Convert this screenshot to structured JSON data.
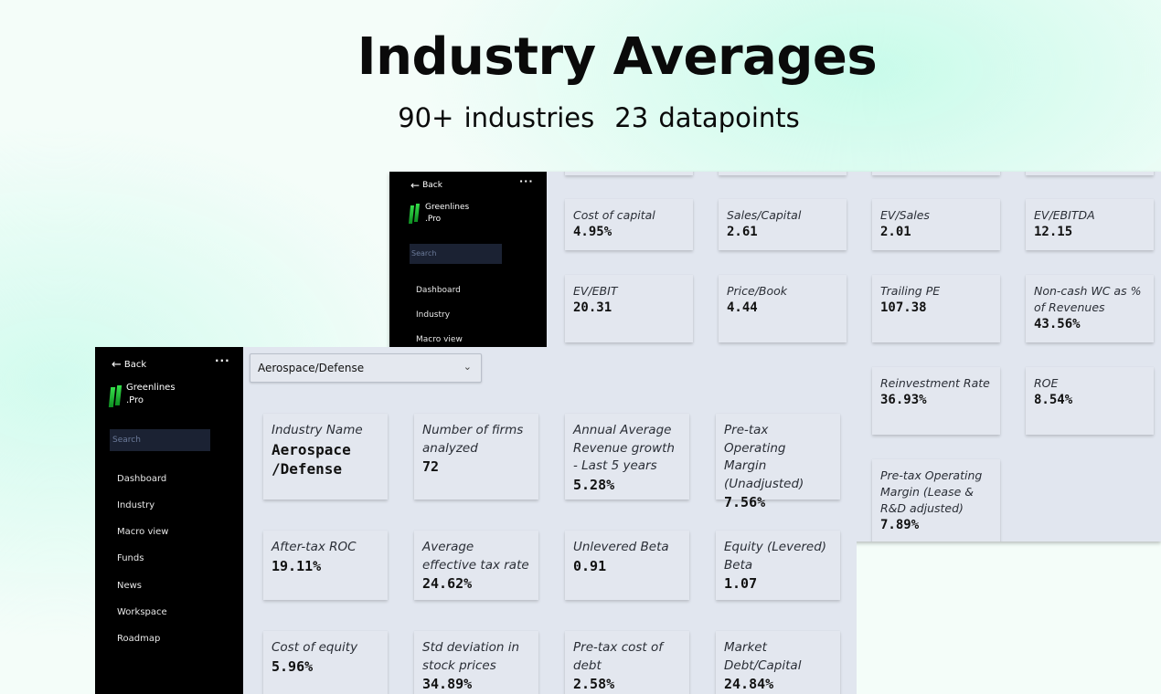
{
  "hero": {
    "title": "Industry Averages",
    "stat1": "90+ industries",
    "stat2": "23 datapoints"
  },
  "sidebar": {
    "back_label": "Back",
    "more_glyph": "···",
    "brand_line1": "Greenlines",
    "brand_line2": ".Pro",
    "search_placeholder": "Search",
    "items": [
      "Dashboard",
      "Industry",
      "Macro view",
      "Funds",
      "News",
      "Workspace",
      "Roadmap"
    ]
  },
  "industry_select": {
    "value": "Aerospace/Defense"
  },
  "back_cards": [
    {
      "label": "Cost of capital",
      "value": "4.95%"
    },
    {
      "label": "Sales/Capital",
      "value": "2.61"
    },
    {
      "label": "EV/Sales",
      "value": "2.01"
    },
    {
      "label": "EV/EBITDA",
      "value": "12.15"
    },
    {
      "label": "EV/EBIT",
      "value": "20.31"
    },
    {
      "label": "Price/Book",
      "value": "4.44"
    },
    {
      "label": "Trailing PE",
      "value": "107.38"
    },
    {
      "label": "Non-cash WC as % of Revenues",
      "value": "43.56%"
    },
    {
      "label": "Reinvestment Rate",
      "value": "36.93%"
    },
    {
      "label": "ROE",
      "value": "8.54%"
    },
    {
      "label": "Pre-tax Operating Margin (Lease & R&D adjusted)",
      "value": "7.89%"
    }
  ],
  "front_cards": [
    {
      "label": "Industry Name",
      "value": "Aerospace /Defense"
    },
    {
      "label": "Number of firms analyzed",
      "value": "72"
    },
    {
      "label": "Annual Average Revenue growth - Last 5 years",
      "value": "5.28%"
    },
    {
      "label": "Pre-tax Operating Margin (Unadjusted)",
      "value": "7.56%"
    },
    {
      "label": "After-tax ROC",
      "value": "19.11%"
    },
    {
      "label": "Average effective tax rate",
      "value": "24.62%"
    },
    {
      "label": "Unlevered Beta",
      "value": "0.91"
    },
    {
      "label": "Equity (Levered) Beta",
      "value": "1.07"
    },
    {
      "label": "Cost of equity",
      "value": "5.96%"
    },
    {
      "label": "Std deviation in stock prices",
      "value": "34.89%"
    },
    {
      "label": "Pre-tax cost of debt",
      "value": "2.58%"
    },
    {
      "label": "Market Debt/Capital",
      "value": "24.84%"
    }
  ],
  "icons": {
    "back": "arrow-left-icon",
    "more": "more-dots-icon",
    "logo": "greenlines-logo",
    "dropdown": "chevron-down-icon"
  },
  "colors": {
    "sidebar_bg": "#000000",
    "content_bg": "#e1e6ef",
    "logo_green": "#35e04a"
  }
}
